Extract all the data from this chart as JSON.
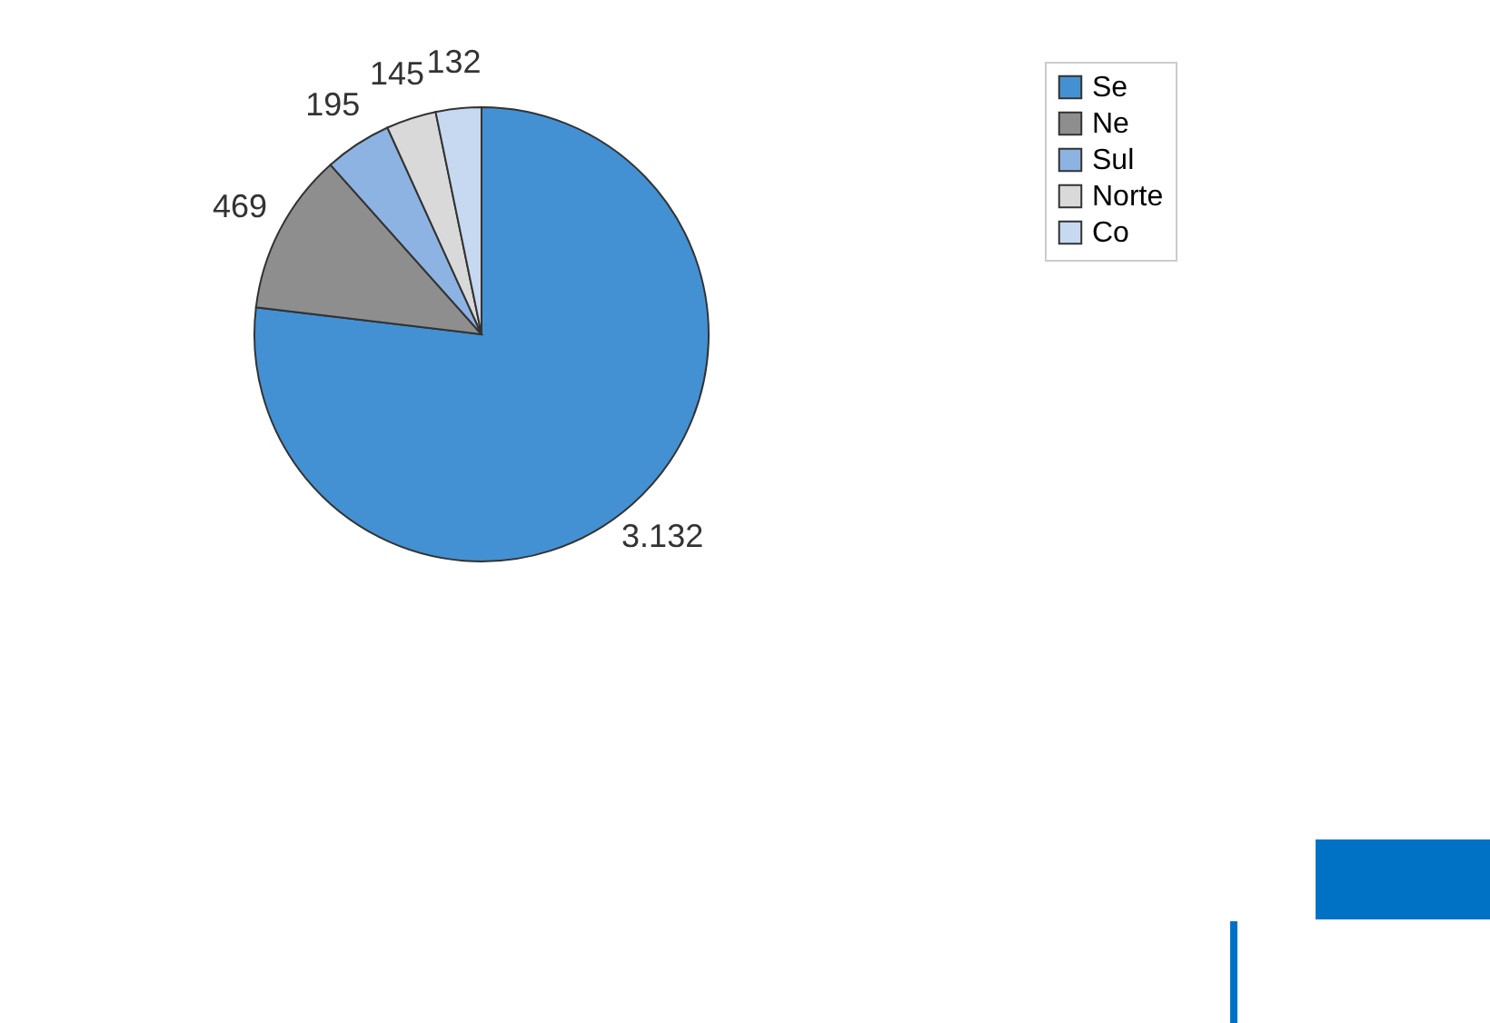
{
  "chart_data": {
    "type": "pie",
    "categories": [
      "Se",
      "Ne",
      "Sul",
      "Norte",
      "Co"
    ],
    "values": [
      3132,
      469,
      195,
      145,
      132
    ],
    "value_labels": [
      "3.132",
      "469",
      "195",
      "145",
      "132"
    ],
    "colors": [
      "#4391d3",
      "#8e8e8e",
      "#8db3e2",
      "#d9d9d9",
      "#c6d9f1"
    ],
    "legend": "right"
  }
}
